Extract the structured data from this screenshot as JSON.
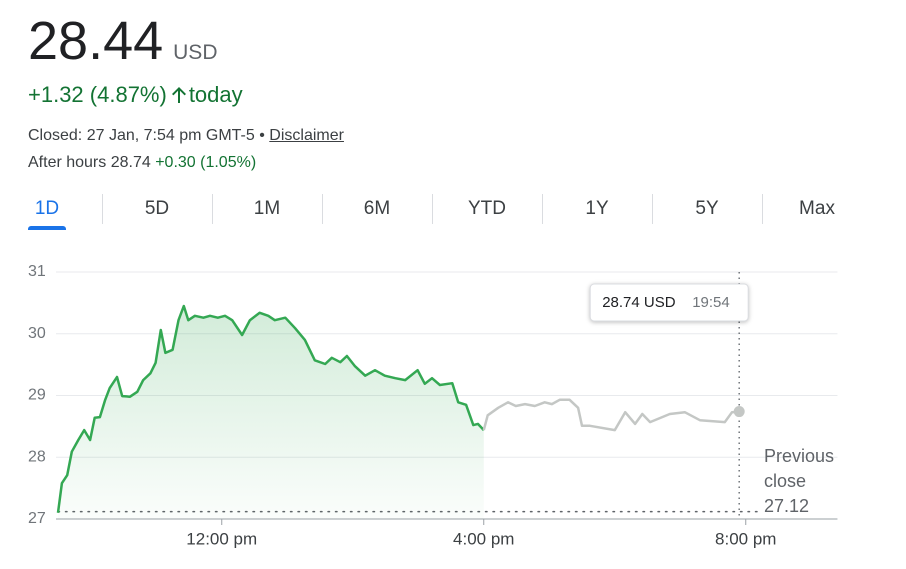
{
  "header": {
    "price": "28.44",
    "currency": "USD",
    "change": "+1.32 (4.87%)",
    "change_suffix": "today",
    "status": "Closed: 27 Jan, 7:54 pm GMT-5",
    "separator": "•",
    "disclaimer": "Disclaimer",
    "after_hours_label": "After hours 28.74",
    "after_hours_change": "+0.30 (1.05%)"
  },
  "tabs": [
    "1D",
    "5D",
    "1M",
    "6M",
    "YTD",
    "1Y",
    "5Y",
    "Max"
  ],
  "active_tab": 0,
  "chart_data": {
    "type": "line",
    "xlim": [
      9.5,
      21.4
    ],
    "xticks": [
      {
        "value": 12,
        "label": "12:00 pm"
      },
      {
        "value": 16,
        "label": "4:00 pm"
      },
      {
        "value": 20,
        "label": "8:00 pm"
      }
    ],
    "ylim": [
      27,
      31
    ],
    "yticks": [
      27,
      28,
      29,
      30,
      31
    ],
    "grid": true,
    "series": [
      {
        "color": "#34a853",
        "fill_area": true,
        "x": [
          9.5,
          9.56,
          9.64,
          9.71,
          9.81,
          9.9,
          9.99,
          10.06,
          10.14,
          10.22,
          10.29,
          10.4,
          10.48,
          10.6,
          10.71,
          10.8,
          10.91,
          10.99,
          11.07,
          11.14,
          11.25,
          11.34,
          11.42,
          11.49,
          11.59,
          11.72,
          11.82,
          11.94,
          12.05,
          12.16,
          12.31,
          12.43,
          12.58,
          12.71,
          12.81,
          12.97,
          13.12,
          13.27,
          13.42,
          13.58,
          13.68,
          13.81,
          13.91,
          14.03,
          14.19,
          14.34,
          14.49,
          14.65,
          14.8,
          14.99,
          15.1,
          15.21,
          15.33,
          15.52,
          15.61,
          15.73,
          15.84,
          15.91,
          16.0
        ],
        "values": [
          27.1,
          27.58,
          27.71,
          28.09,
          28.28,
          28.44,
          28.28,
          28.64,
          28.65,
          28.93,
          29.12,
          29.3,
          28.99,
          28.98,
          29.06,
          29.25,
          29.36,
          29.53,
          30.06,
          29.69,
          29.74,
          30.22,
          30.45,
          30.22,
          30.29,
          30.26,
          30.29,
          30.26,
          30.29,
          30.22,
          29.98,
          30.22,
          30.34,
          30.29,
          30.22,
          30.26,
          30.09,
          29.9,
          29.57,
          29.51,
          29.61,
          29.54,
          29.64,
          29.48,
          29.32,
          29.41,
          29.32,
          29.28,
          29.25,
          29.41,
          29.19,
          29.28,
          29.17,
          29.2,
          28.89,
          28.85,
          28.52,
          28.54,
          28.44
        ]
      },
      {
        "color": "#c4c7c5",
        "fill_area": false,
        "x": [
          16.0,
          16.06,
          16.22,
          16.37,
          16.49,
          16.63,
          16.78,
          16.93,
          17.04,
          17.16,
          17.31,
          17.44,
          17.5,
          17.62,
          18.0,
          18.16,
          18.31,
          18.42,
          18.54,
          18.84,
          19.07,
          19.3,
          19.68,
          19.79,
          19.9
        ],
        "values": [
          28.44,
          28.68,
          28.8,
          28.89,
          28.83,
          28.86,
          28.83,
          28.89,
          28.86,
          28.93,
          28.93,
          28.8,
          28.51,
          28.51,
          28.44,
          28.73,
          28.54,
          28.7,
          28.57,
          28.7,
          28.73,
          28.6,
          28.57,
          28.73,
          28.74
        ]
      }
    ],
    "reference_line": {
      "value": 27.12,
      "label": "Previous close",
      "value_label": "27.12"
    },
    "tooltip": {
      "x": 19.9,
      "value": 28.74,
      "value_label": "28.74 USD",
      "time": "19:54"
    }
  }
}
